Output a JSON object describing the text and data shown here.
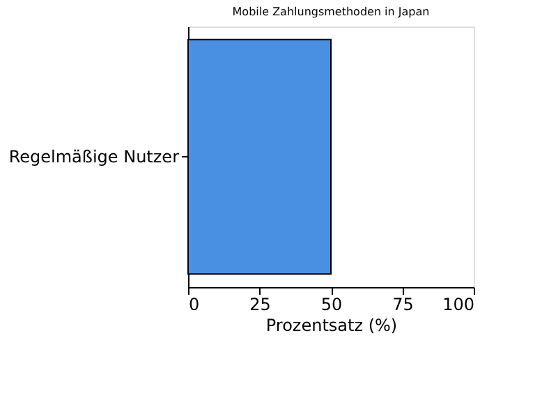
{
  "chart_data": {
    "type": "bar",
    "orientation": "horizontal",
    "title": "Mobile Zahlungsmethoden in Japan",
    "xlabel": "Prozentsatz (%)",
    "categories": [
      "Regelmäßige Nutzer"
    ],
    "values": [
      50
    ],
    "color": "#4a90e2",
    "xlim": [
      0,
      100
    ],
    "xticks": [
      0,
      25,
      50,
      75,
      100
    ],
    "grid": false
  }
}
